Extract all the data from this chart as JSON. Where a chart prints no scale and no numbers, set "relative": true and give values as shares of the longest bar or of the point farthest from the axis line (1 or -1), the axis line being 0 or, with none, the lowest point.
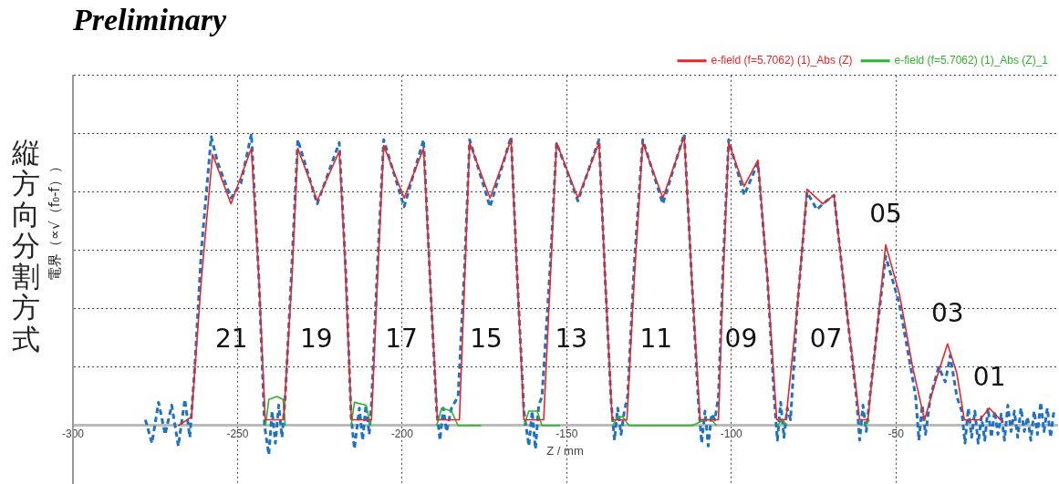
{
  "chart_data": {
    "type": "line",
    "title": "Preliminary",
    "xlabel": "Z / mm",
    "ylabel": "電界（∝√（f₀-f））",
    "relative": true,
    "xlim": [
      -300,
      -1
    ],
    "xticks": [
      -300,
      -250,
      -200,
      -150,
      -100,
      -50
    ],
    "grid": true,
    "legend": "top right",
    "marker": "none",
    "line_style": "solid",
    "annotations": [
      "縦方向分割方式",
      "21",
      "19",
      "17",
      "15",
      "13",
      "11",
      "09",
      "07",
      {
        "text": "05",
        "x": -53.1,
        "y": 0.62
      },
      {
        "text": "03",
        "x": -34.3,
        "y": 0.28
      },
      {
        "text": "01",
        "x": -21.6,
        "y": 0.06
      }
    ],
    "series": [
      {
        "name": "e-field (f=5.7062) (1)_Abs (Z)",
        "color": "#e8262a",
        "x": [
          -268,
          -264,
          -261,
          -257.6,
          -252,
          -245.8,
          -243.5,
          -241.6,
          -236,
          -233.5,
          -231.7,
          -225.8,
          -219.1,
          -217.5,
          -215.4,
          -209.3,
          -207.5,
          -205.6,
          -199.4,
          -193.5,
          -191.5,
          -189.3,
          -182.6,
          -181,
          -179.5,
          -173.3,
          -166.9,
          -165,
          -163,
          -157,
          -155,
          -153.1,
          -146.6,
          -140.2,
          -138.3,
          -136.2,
          -131.7,
          -129.5,
          -126.9,
          -120.8,
          -114.3,
          -112,
          -109.5,
          -103.9,
          -102.5,
          -100.8,
          -96.1,
          -91.9,
          -89,
          -86.2,
          -83.4,
          -80,
          -77,
          -72.2,
          -68.8,
          -65,
          -61,
          -58.5,
          -56,
          -53.1,
          -48.9,
          -44.9,
          -41.3,
          -38,
          -34.3,
          -31.5,
          -29.2,
          -24.5,
          -21.6,
          -17.4
        ],
        "values": [
          0,
          0.03,
          0.5,
          0.93,
          0.76,
          0.95,
          0.5,
          0.02,
          0.02,
          0.5,
          0.95,
          0.77,
          0.94,
          0.6,
          0.02,
          0.02,
          0.5,
          0.96,
          0.78,
          0.95,
          0.5,
          0.02,
          0.02,
          0.5,
          0.97,
          0.78,
          0.98,
          0.5,
          0.02,
          0.02,
          0.5,
          0.97,
          0.78,
          0.97,
          0.5,
          0.02,
          0.02,
          0.5,
          0.97,
          0.78,
          0.99,
          0.5,
          0.02,
          0.02,
          0.5,
          0.97,
          0.82,
          0.91,
          0.5,
          0.02,
          0.02,
          0.4,
          0.81,
          0.76,
          0.79,
          0.4,
          0.02,
          0.02,
          0.3,
          0.62,
          0.45,
          0.2,
          0.02,
          0.15,
          0.28,
          0.18,
          0.02,
          0.02,
          0.06,
          0.01
        ]
      },
      {
        "name": "e-field (f=5.7062) (1)_Abs (Z)_1",
        "color": "#2db52d",
        "x": [
          -241.5,
          -240.5,
          -238,
          -236.2,
          -235.5,
          -235,
          -215.5,
          -214.5,
          -211,
          -209.5,
          -209,
          -189.5,
          -188,
          -185,
          -183,
          -176,
          -175,
          -163,
          -161.5,
          -159,
          -157.5,
          -152,
          -151,
          -136,
          -134.5,
          -133,
          -131,
          -122,
          -112,
          -108,
          -106,
          -104.5,
          -104,
          -86,
          -84.5,
          -83,
          -61,
          -59.5,
          -58
        ],
        "values": [
          0,
          0.09,
          0.1,
          0.09,
          0,
          null,
          0,
          0.08,
          0.07,
          0,
          null,
          0,
          0.06,
          0.05,
          0,
          0,
          null,
          0,
          0.05,
          0.05,
          0,
          0,
          null,
          0,
          0.03,
          0.03,
          0,
          0,
          0,
          0.02,
          0.02,
          0,
          null,
          0,
          0.02,
          0,
          null,
          0,
          0.02
        ]
      },
      {
        "color": "#1f72c0",
        "line_style": "dashed",
        "x": [
          -278,
          -276,
          -274,
          -272,
          -270,
          -268,
          -266,
          -264.5,
          -263,
          -261,
          -258,
          -256,
          -252,
          -249,
          -245.8,
          -243.5,
          -241.8,
          -240.5,
          -239.5,
          -238.5,
          -237.5,
          -236.5,
          -235.5,
          -233.5,
          -231.7,
          -225.8,
          -219.1,
          -217,
          -215.5,
          -214.5,
          -213,
          -212,
          -211,
          -210,
          -209.3,
          -207.5,
          -205.6,
          -199.4,
          -193.5,
          -191.5,
          -189.5,
          -188.5,
          -187.5,
          -186.5,
          -185,
          -183,
          -181,
          -179.5,
          -173.3,
          -166.9,
          -165,
          -163,
          -161.5,
          -160.5,
          -159.5,
          -158.5,
          -157.5,
          -155,
          -153.1,
          -146.6,
          -140.2,
          -138.3,
          -136.5,
          -135.5,
          -134.5,
          -133.5,
          -132.5,
          -131.5,
          -129.5,
          -126.9,
          -120.8,
          -114.3,
          -112,
          -110,
          -109,
          -108,
          -107,
          -106,
          -105,
          -103.9,
          -102.5,
          -100.8,
          -96.1,
          -91.9,
          -89,
          -87,
          -86,
          -85,
          -84,
          -83,
          -82,
          -80,
          -77,
          -74,
          -72.2,
          -68.8,
          -65,
          -62,
          -61,
          -60,
          -59,
          -58,
          -56,
          -53.1,
          -49,
          -45.5,
          -44,
          -43,
          -42,
          -41,
          -39.5,
          -37,
          -35,
          -33.5,
          -31.5,
          -30,
          -29,
          -28,
          -27,
          -26,
          -25,
          -24,
          -23,
          -22,
          -21,
          -20,
          -19,
          -18,
          -17,
          -16,
          -15,
          -14,
          -13,
          -12,
          -11,
          -10,
          -9,
          -8,
          -7,
          -6,
          -5,
          -4,
          -3,
          -2
        ],
        "values": [
          0.02,
          -0.06,
          0.08,
          -0.03,
          0.07,
          -0.07,
          0.09,
          -0.04,
          0.2,
          0.6,
          0.99,
          0.9,
          0.78,
          0.83,
          1,
          0.5,
          0,
          -0.1,
          0.05,
          -0.06,
          0.07,
          -0.04,
          0.1,
          0.55,
          0.98,
          0.76,
          0.97,
          0.5,
          0.03,
          -0.08,
          0.06,
          -0.05,
          0.07,
          -0.03,
          0.08,
          0.55,
          0.98,
          0.75,
          0.98,
          0.5,
          0.05,
          -0.05,
          0.06,
          -0.02,
          0.06,
          0.1,
          0.55,
          0.98,
          0.75,
          0.99,
          0.5,
          0.05,
          -0.07,
          0.05,
          -0.08,
          0.07,
          0.1,
          0.55,
          0.97,
          0.77,
          0.98,
          0.5,
          0.08,
          -0.05,
          0.06,
          -0.03,
          0.05,
          0.1,
          0.55,
          0.98,
          0.76,
          1,
          0.5,
          0.08,
          -0.06,
          0.05,
          -0.07,
          0.04,
          0.02,
          0.1,
          0.55,
          0.98,
          0.79,
          0.9,
          0.5,
          0.1,
          -0.05,
          0.08,
          -0.04,
          0.06,
          0.02,
          0.4,
          0.8,
          0.74,
          0.76,
          0.79,
          0.4,
          0.1,
          -0.05,
          0.07,
          -0.02,
          0.09,
          0.3,
          0.58,
          0.42,
          0.2,
          0.1,
          -0.05,
          0.07,
          -0.03,
          0.1,
          0.2,
          0.15,
          0.24,
          0.1,
          0.05,
          -0.06,
          0.06,
          -0.04,
          0.05,
          -0.06,
          0.03,
          -0.05,
          0.06,
          -0.04,
          0.05,
          -0.03,
          0.04,
          -0.05,
          0.07,
          -0.02,
          0.05,
          -0.04,
          0.06,
          -0.02,
          0.03,
          -0.05,
          0.05,
          -0.03,
          0.08,
          -0.02,
          0.06,
          -0.04,
          0.05
        ]
      }
    ]
  }
}
